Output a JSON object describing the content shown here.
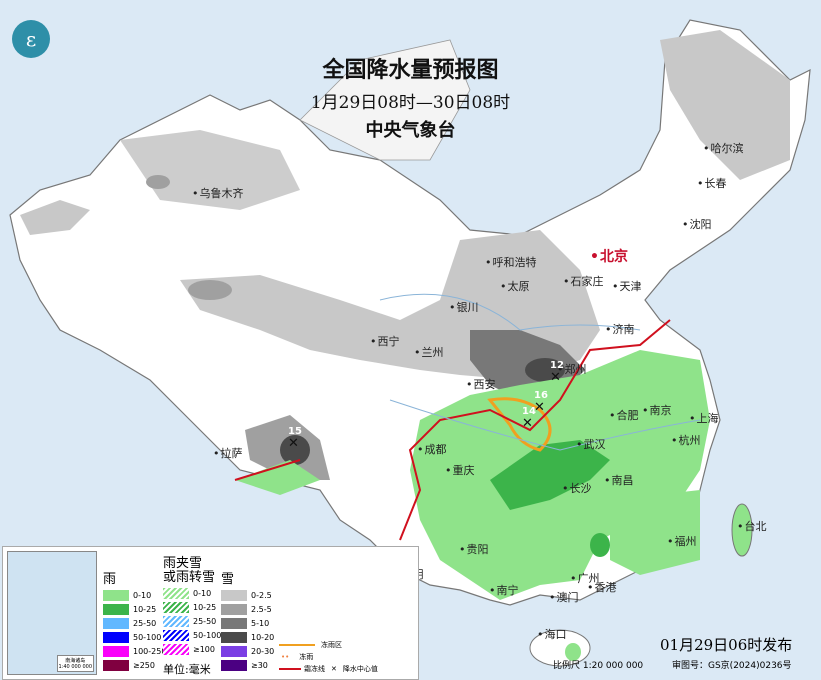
{
  "header": {
    "title": "全国降水量预报图",
    "period": "1月29日08时—30日08时",
    "issuer": "中央气象台"
  },
  "logo": {
    "name": "cma-logo-icon"
  },
  "cities": [
    {
      "name": "乌鲁木齐"
    },
    {
      "name": "哈尔滨"
    },
    {
      "name": "长春"
    },
    {
      "name": "沈阳"
    },
    {
      "name": "北京",
      "capital": true
    },
    {
      "name": "天津"
    },
    {
      "name": "呼和浩特"
    },
    {
      "name": "石家庄"
    },
    {
      "name": "太原"
    },
    {
      "name": "济南"
    },
    {
      "name": "银川"
    },
    {
      "name": "西宁"
    },
    {
      "name": "兰州"
    },
    {
      "name": "郑州"
    },
    {
      "name": "西安"
    },
    {
      "name": "合肥"
    },
    {
      "name": "南京"
    },
    {
      "name": "上海"
    },
    {
      "name": "武汉"
    },
    {
      "name": "杭州"
    },
    {
      "name": "成都"
    },
    {
      "name": "重庆"
    },
    {
      "name": "长沙"
    },
    {
      "name": "南昌"
    },
    {
      "name": "福州"
    },
    {
      "name": "台北"
    },
    {
      "name": "贵阳"
    },
    {
      "name": "拉萨"
    },
    {
      "name": "昆明"
    },
    {
      "name": "南宁"
    },
    {
      "name": "广州"
    },
    {
      "name": "澳门"
    },
    {
      "name": "香港"
    },
    {
      "name": "海口"
    }
  ],
  "precip_centers": [
    "15",
    "12",
    "16",
    "14"
  ],
  "legend": {
    "rain": {
      "title": "雨",
      "items": [
        {
          "label": "0-10",
          "color": "#8fe38a"
        },
        {
          "label": "10-25",
          "color": "#3cb44a"
        },
        {
          "label": "25-50",
          "color": "#61b8ff"
        },
        {
          "label": "50-100",
          "color": "#0000fe"
        },
        {
          "label": "100-250",
          "color": "#fa00fa"
        },
        {
          "label": "≥250",
          "color": "#800040"
        }
      ]
    },
    "sleet": {
      "title1": "雨夹雪",
      "title2": "或雨转雪",
      "items": [
        {
          "label": "0-10",
          "color": "#8fe38a"
        },
        {
          "label": "10-25",
          "color": "#3cb44a"
        },
        {
          "label": "25-50",
          "color": "#61b8ff"
        },
        {
          "label": "50-100",
          "color": "#0000fe"
        },
        {
          "label": "≥100",
          "color": "#fa00fa"
        }
      ]
    },
    "snow": {
      "title": "雪",
      "items": [
        {
          "label": "0-2.5",
          "color": "#c8c8c8"
        },
        {
          "label": "2.5-5",
          "color": "#a0a0a0"
        },
        {
          "label": "5-10",
          "color": "#787878"
        },
        {
          "label": "10-20",
          "color": "#4a4a4a"
        },
        {
          "label": "20-30",
          "color": "#7b3fe4"
        },
        {
          "label": "≥30",
          "color": "#4b0082"
        }
      ]
    },
    "unit": "单位:毫米",
    "freezing_rain_area": "冻雨区",
    "freezing_rain": "冻雨",
    "frost_line": "霜冻线",
    "precip_center": "降水中心值",
    "inset_title": "南海诸岛",
    "inset_scale": "1:40 000 000"
  },
  "footer": {
    "issued": "01月29日06时发布",
    "scale": "比例尺 1:20 000 000",
    "approval": "审图号：GS京(2024)0236号"
  }
}
